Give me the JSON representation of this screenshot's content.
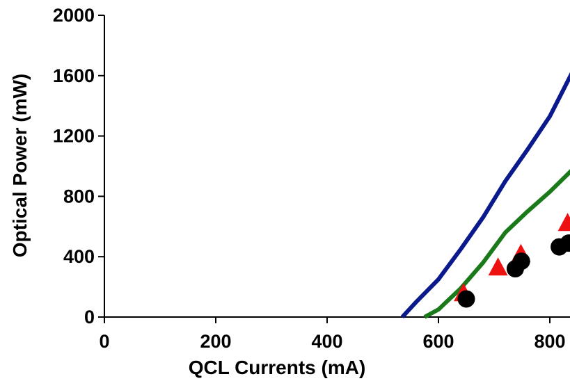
{
  "chart_data": {
    "type": "line",
    "title": "",
    "xlabel": "QCL Currents (mA)",
    "ylabel": "Optical Power (mW)",
    "xlim": [
      0,
      840
    ],
    "ylim": [
      0,
      2000
    ],
    "xticks": [
      0,
      200,
      400,
      600,
      800
    ],
    "yticks": [
      0,
      400,
      800,
      1200,
      1600,
      2000
    ],
    "grid": false,
    "legend": "none",
    "series": [
      {
        "kind": "line",
        "color": "#0a1a8c",
        "x": [
          535,
          560,
          600,
          640,
          680,
          720,
          760,
          800,
          840
        ],
        "y": [
          0,
          100,
          250,
          450,
          660,
          900,
          1110,
          1330,
          1620
        ]
      },
      {
        "kind": "line",
        "color": "#1a7a1a",
        "x": [
          575,
          600,
          640,
          680,
          720,
          760,
          800,
          840
        ],
        "y": [
          0,
          50,
          190,
          360,
          560,
          700,
          830,
          975
        ]
      },
      {
        "kind": "scatter",
        "marker": "triangle",
        "color": "#ee1111",
        "x": [
          645,
          707,
          748,
          832
        ],
        "y": [
          165,
          335,
          425,
          630
        ]
      },
      {
        "kind": "scatter",
        "marker": "circle",
        "color": "#000000",
        "x": [
          650,
          738,
          749,
          817,
          834
        ],
        "y": [
          120,
          320,
          370,
          465,
          490
        ]
      }
    ]
  }
}
